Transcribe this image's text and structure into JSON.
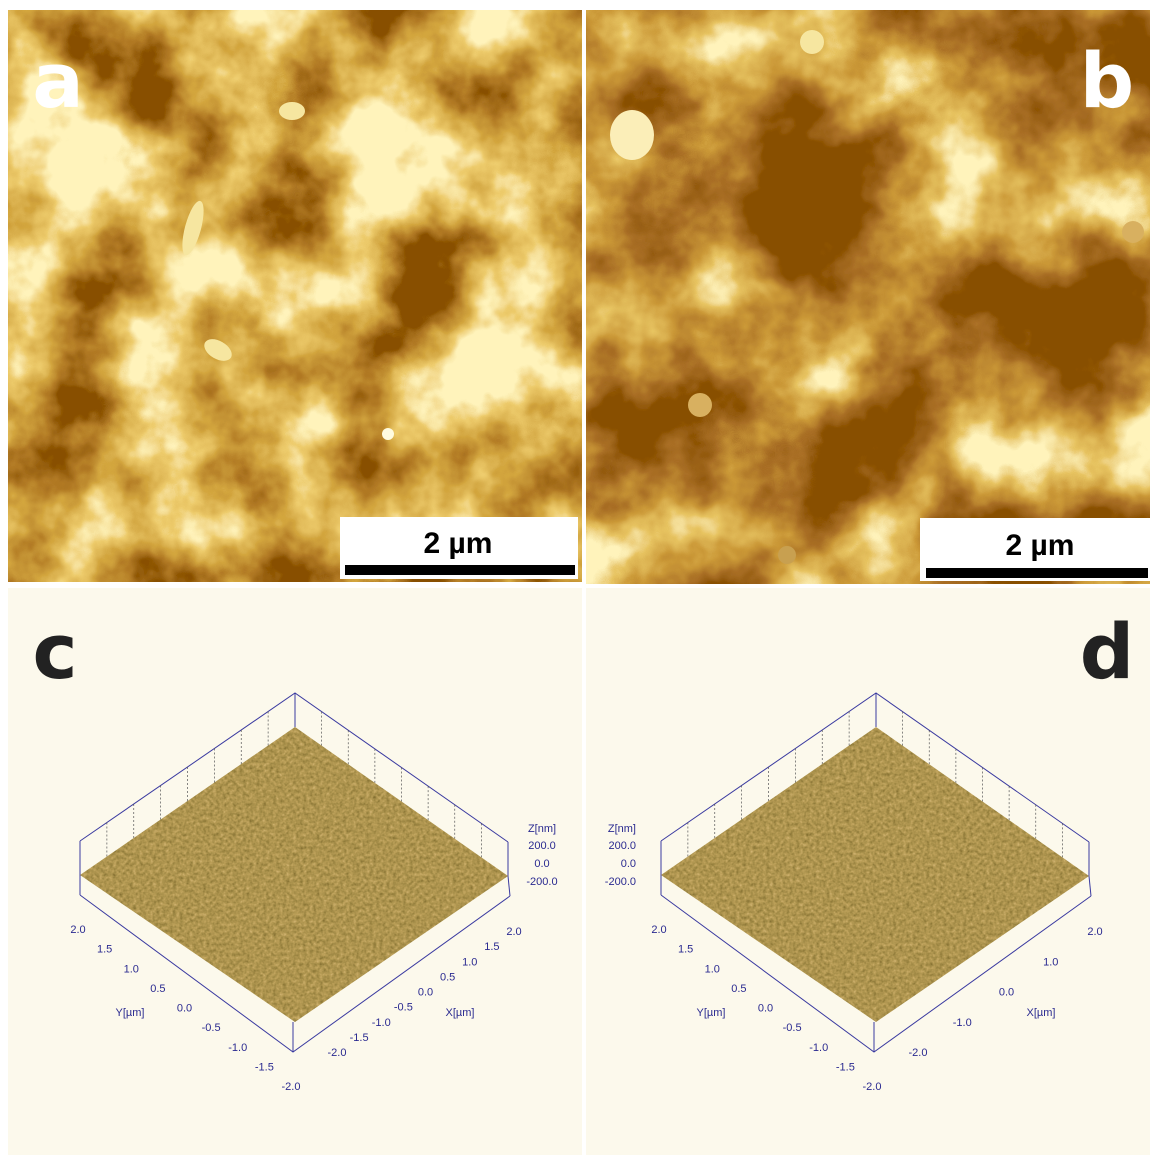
{
  "panels": {
    "a": {
      "label": "a",
      "scale_bar": "2 µm"
    },
    "b": {
      "label": "b",
      "scale_bar": "2 µm"
    },
    "c": {
      "label": "c",
      "z_title": "Z[nm]",
      "z_ticks": [
        "200.0",
        "0.0",
        "-200.0"
      ],
      "x_title": "X[µm]",
      "y_title": "Y[µm]",
      "x_ticks": [
        "-2.0",
        "-1.5",
        "-1.0",
        "-0.5",
        "0.0",
        "0.5",
        "1.0",
        "1.5",
        "2.0"
      ],
      "y_ticks": [
        "2.0",
        "1.5",
        "1.0",
        "0.5",
        "0.0",
        "-0.5",
        "-1.0",
        "-1.5",
        "-2.0"
      ]
    },
    "d": {
      "label": "d",
      "z_title": "Z[nm]",
      "z_ticks": [
        "200.0",
        "0.0",
        "-200.0"
      ],
      "x_title": "X[µm]",
      "y_title": "Y[µm]",
      "x_ticks": [
        "-2.0",
        "-1.0",
        "0.0",
        "1.0",
        "2.0"
      ],
      "y_ticks": [
        "2.0",
        "1.5",
        "1.0",
        "0.5",
        "0.0",
        "-0.5",
        "-1.0",
        "-1.5",
        "-2.0"
      ]
    }
  }
}
